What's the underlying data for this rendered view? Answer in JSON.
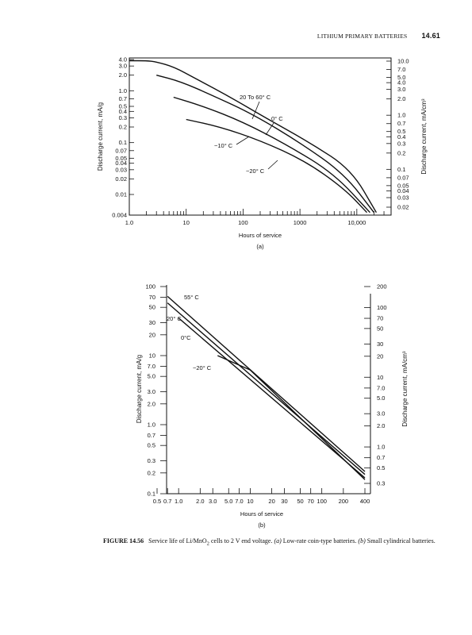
{
  "header": {
    "running_title": "LITHIUM PRIMARY BATTERIES",
    "page_number": "14.61"
  },
  "chart_data": [
    {
      "type": "line",
      "panel_label": "(a)",
      "xlabel": "Hours of service",
      "ylabel": "Discharge current, mA/g",
      "ylabel_right": "Discharge current, mA/cm³",
      "x_scale": "log",
      "y_scale": "log",
      "xlim": [
        1,
        40000
      ],
      "ylim": [
        0.004,
        4.0
      ],
      "ylim_right": [
        0.02,
        10.0
      ],
      "x_ticks": [
        "1.0",
        "10",
        "100",
        "1000",
        "10,000"
      ],
      "x_tick_values": [
        1,
        10,
        100,
        1000,
        10000
      ],
      "y_ticks": [
        "4.0",
        "3.0",
        "2.0",
        "1.0",
        "0.7",
        "0.5",
        "0.4",
        "0.3",
        "0.2",
        "0.1",
        "0.07",
        "0.05",
        "0.04",
        "0.03",
        "0.02",
        "0.01",
        "0.004"
      ],
      "y_tick_values": [
        4.0,
        3.0,
        2.0,
        1.0,
        0.7,
        0.5,
        0.4,
        0.3,
        0.2,
        0.1,
        0.07,
        0.05,
        0.04,
        0.03,
        0.02,
        0.01,
        0.004
      ],
      "y_ticks_right": [
        "10.0",
        "7.0",
        "5.0",
        "4.0",
        "3.0",
        "2.0",
        "1.0",
        "0.7",
        "0.5",
        "0.4",
        "0.3",
        "0.2",
        "0.1",
        "0.07",
        "0.05",
        "0.04",
        "0.03",
        "0.02"
      ],
      "y_tick_values_right": [
        10.0,
        7.0,
        5.0,
        4.0,
        3.0,
        2.0,
        1.0,
        0.7,
        0.5,
        0.4,
        0.3,
        0.2,
        0.1,
        0.07,
        0.05,
        0.04,
        0.03,
        0.02
      ],
      "series": [
        {
          "name": "20 to 60° C",
          "x": [
            1.0,
            2.0,
            3.0,
            6.0,
            15.0,
            60.0,
            250.0,
            1500.0,
            8000.0,
            22000.0
          ],
          "y": [
            3.8,
            3.8,
            3.6,
            2.9,
            1.7,
            0.75,
            0.3,
            0.1,
            0.03,
            0.0045
          ]
        },
        {
          "name": "0° C",
          "x": [
            3.0,
            8.0,
            30.0,
            150.0,
            1000.0,
            6000.0,
            20000.0
          ],
          "y": [
            2.0,
            1.5,
            0.8,
            0.35,
            0.1,
            0.025,
            0.0045
          ]
        },
        {
          "name": "-10° C",
          "x": [
            6.0,
            20.0,
            100.0,
            600.0,
            4000.0,
            17000.0
          ],
          "y": [
            0.75,
            0.5,
            0.25,
            0.09,
            0.025,
            0.0045
          ]
        },
        {
          "name": "-20° C",
          "x": [
            10.0,
            40.0,
            200.0,
            1200.0,
            6000.0,
            15000.0
          ],
          "y": [
            0.28,
            0.2,
            0.11,
            0.045,
            0.013,
            0.0045
          ]
        }
      ]
    },
    {
      "type": "line",
      "panel_label": "(b)",
      "xlabel": "Hours of service",
      "ylabel": "Discharge current, mA/g",
      "ylabel_right": "Discharge current, mA/cm³",
      "x_scale": "log",
      "y_scale": "log",
      "xlim": [
        0.5,
        400
      ],
      "ylim": [
        0.1,
        100
      ],
      "ylim_right": [
        0.3,
        200
      ],
      "x_ticks": [
        "0.5",
        "0.7",
        "1.0",
        "2.0",
        "3.0",
        "5.0",
        "7.0",
        "10",
        "20",
        "30",
        "50",
        "70",
        "100",
        "200",
        "400"
      ],
      "x_tick_values": [
        0.5,
        0.7,
        1.0,
        2.0,
        3.0,
        5.0,
        7.0,
        10,
        20,
        30,
        50,
        70,
        100,
        200,
        400
      ],
      "y_ticks": [
        "100",
        "70",
        "50",
        "30",
        "20",
        "10",
        "7.0",
        "5.0",
        "3.0",
        "2.0",
        "1.0",
        "0.7",
        "0.5",
        "0.3",
        "0.2",
        "0.1"
      ],
      "y_tick_values": [
        100,
        70,
        50,
        30,
        20,
        10,
        7.0,
        5.0,
        3.0,
        2.0,
        1.0,
        0.7,
        0.5,
        0.3,
        0.2,
        0.1
      ],
      "y_ticks_right": [
        "200",
        "100",
        "70",
        "50",
        "30",
        "20",
        "10",
        "7.0",
        "5.0",
        "3.0",
        "2.0",
        "1.0",
        "0.7",
        "0.5",
        "0.3"
      ],
      "y_tick_values_right": [
        200,
        100,
        70,
        50,
        30,
        20,
        10,
        7.0,
        5.0,
        3.0,
        2.0,
        1.0,
        0.7,
        0.5,
        0.3
      ],
      "series": [
        {
          "name": "55° C",
          "x": [
            0.7,
            400.0
          ],
          "y": [
            72.0,
            0.21
          ]
        },
        {
          "name": "20° C",
          "x": [
            0.7,
            400.0
          ],
          "y": [
            58.0,
            0.19
          ]
        },
        {
          "name": "0° C",
          "x": [
            1.0,
            400.0
          ],
          "y": [
            35.0,
            0.17
          ]
        },
        {
          "name": "-20° C",
          "x": [
            3.5,
            10.0,
            400.0
          ],
          "y": [
            10.0,
            6.2,
            0.16
          ]
        }
      ],
      "annotations": [
        "55° C",
        "20° C",
        "0°C",
        "−20° C"
      ]
    }
  ],
  "panel_a_labels": {
    "s1": "20 To 60° C",
    "s2": "0° C",
    "s3": "−10° C",
    "s4": "−20° C"
  },
  "caption": {
    "figure_label": "FIGURE 14.56",
    "text_before": "Service life of Li/MnO",
    "subscript": "2",
    "text_middle": " cells to 2 V end voltage. ",
    "a_label": "(a)",
    "a_text": " Low-rate coin-type batteries. ",
    "b_label": "(b)",
    "b_text": " Small cylindrical batteries."
  }
}
